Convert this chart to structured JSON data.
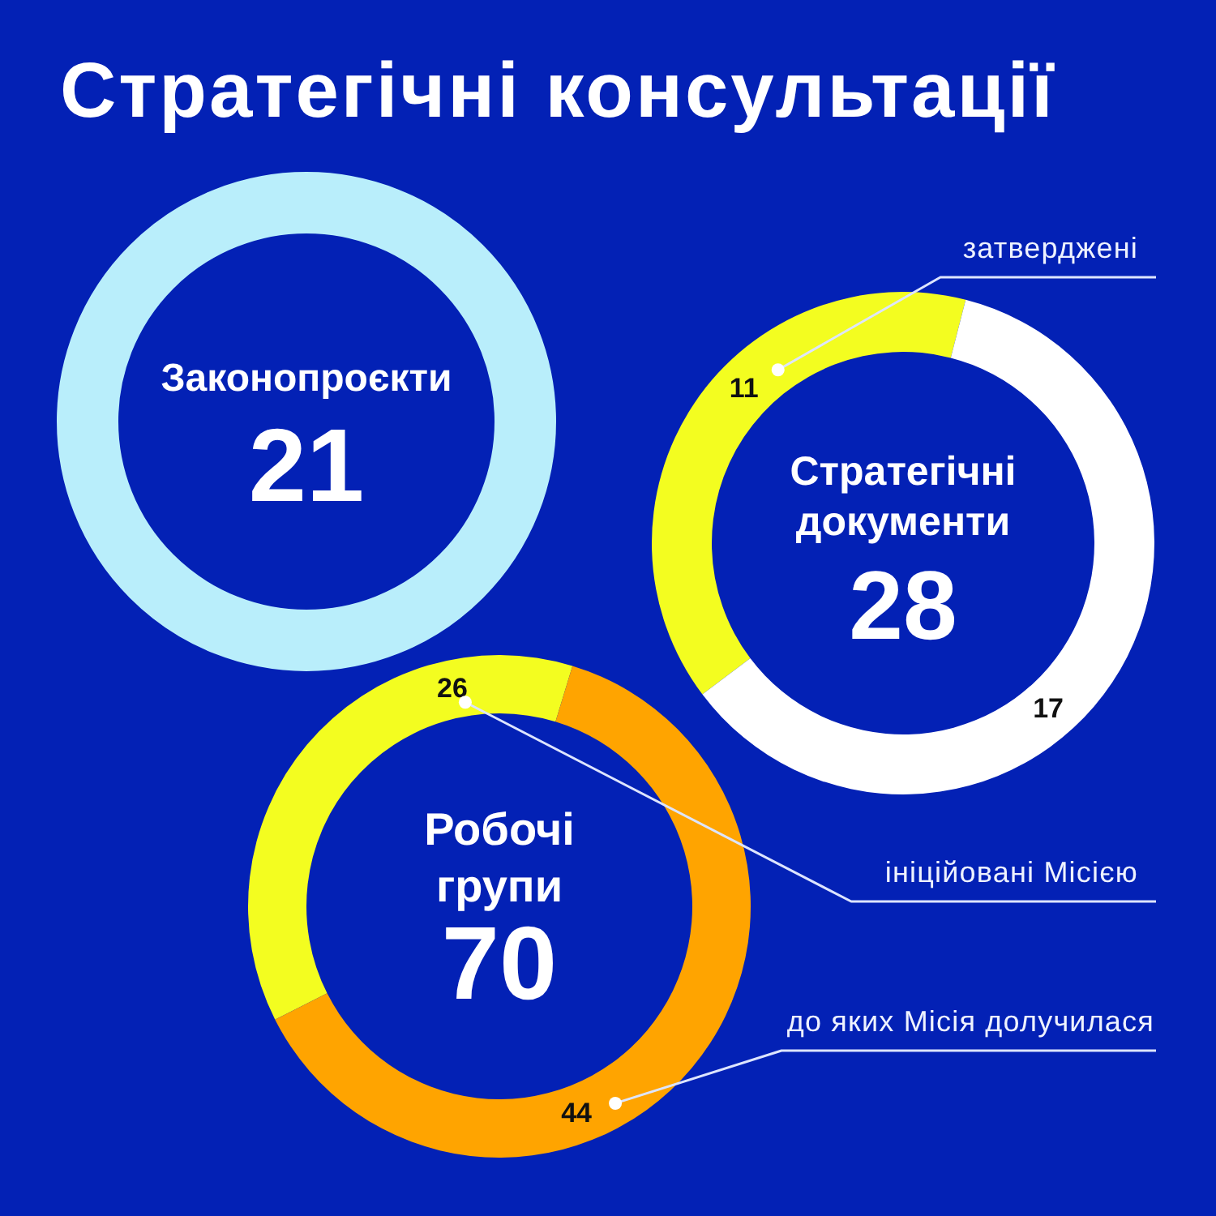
{
  "chart_data": [
    {
      "type": "other",
      "title": "Стратегічні консультації"
    },
    {
      "type": "other",
      "title": "Законопроєкти",
      "annotations": [
        "21"
      ]
    },
    {
      "type": "donut",
      "title": "Стратегічні документи",
      "categories": [
        "затверджені",
        null
      ],
      "values": [
        11,
        17
      ],
      "colors": [
        "#f3fd20",
        "#ffffff"
      ],
      "data_labels": true,
      "annotations": [
        "28"
      ]
    },
    {
      "type": "donut",
      "title": "Робочі групи",
      "categories": [
        "ініційовані Місією",
        "до яких Місія долучилася"
      ],
      "values": [
        26,
        44
      ],
      "colors": [
        "#f3fd20",
        "#ffa400"
      ],
      "data_labels": true,
      "annotations": [
        "70"
      ]
    }
  ]
}
